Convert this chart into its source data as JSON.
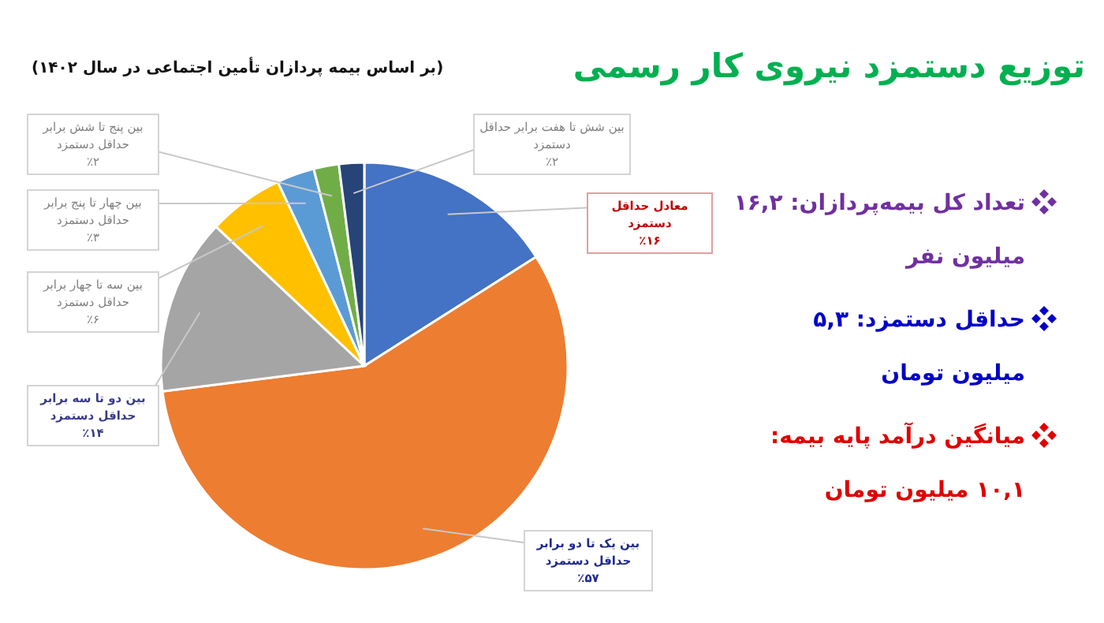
{
  "chart_data": {
    "type": "pie",
    "title": "توزیع دستمزد نیروی کار رسمی",
    "subtitle": "(بر اساس بیمه پردازان تأمین اجتماعی در سال ۱۴۰۲)",
    "categories": [
      "معادل حداقل دستمزد",
      "بین یک تا دو برابر حداقل دستمزد",
      "بین دو تا سه برابر حداقل دستمزد",
      "بین سه تا چهار برابر حداقل دستمزد",
      "بین چهار تا پنج برابر حداقل دستمزد",
      "بین پنج تا شش برابر حداقل دستمزد",
      "بین شش تا هفت برابر حداقل دستمزد"
    ],
    "values": [
      16,
      57,
      14,
      6,
      3,
      2,
      2
    ],
    "colors": [
      "#4472c4",
      "#ed7d31",
      "#a5a5a5",
      "#ffc000",
      "#5b9bd5",
      "#70ad47",
      "#264478"
    ],
    "value_labels": [
      "٪۱۶",
      "٪۵۷",
      "٪۱۴",
      "٪۶",
      "٪۳",
      "٪۲",
      "٪۲"
    ],
    "annotations": [
      "تعداد کل بیمه‌پردازان: ۱۶,۲ میلیون نفر",
      "حداقل دستمزد: ۵,۳ میلیون تومان",
      "میانگین درآمد پایه بیمه: ۱۰,۱ میلیون تومان"
    ]
  }
}
